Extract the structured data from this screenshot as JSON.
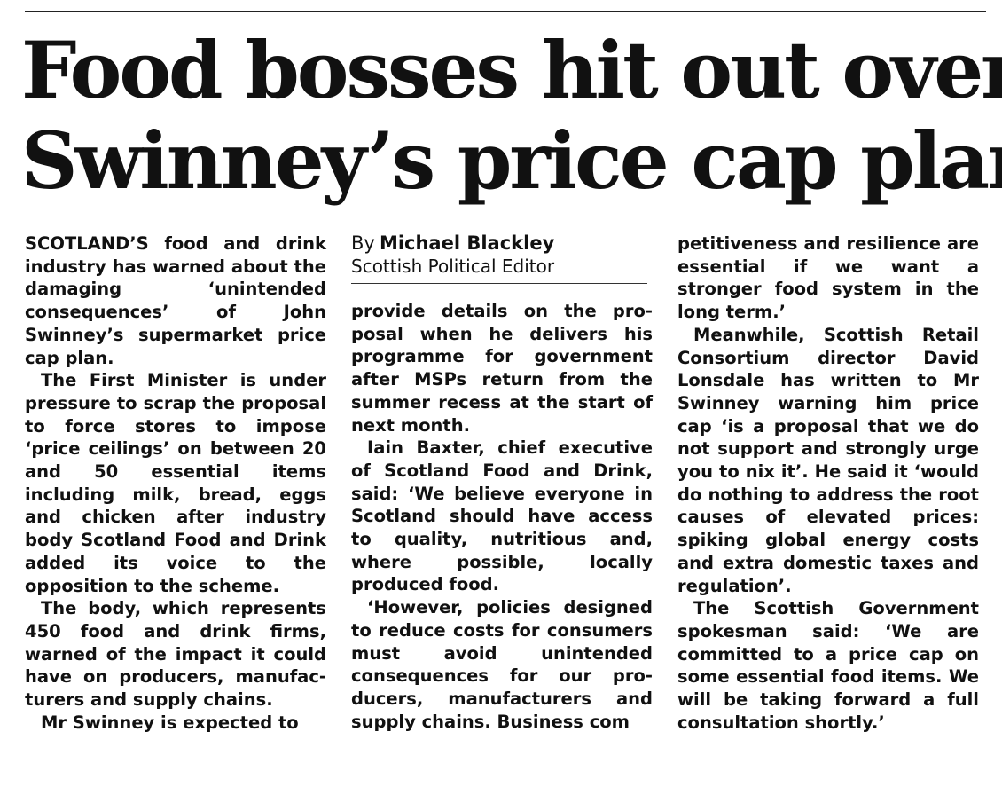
{
  "headline": {
    "line1": "Food bosses hit out over",
    "line2": "Swinney’s price cap plan"
  },
  "byline": {
    "by": "By",
    "name": "Michael Blackley",
    "role": "Scottish Political Editor"
  },
  "col1": {
    "p1": "SCOTLAND’S food and drink industry has warned about the damaging ‘unintended consequences’ of John Swinney’s supermarket price cap plan.",
    "p2": "The First Minister is under pressure to scrap the pro­posal to force stores to impose ‘price ceilings’ on between 20 and 50 essential items including milk, bread, eggs and chicken after indus­try body Scotland Food and Drink added its voice to the opposition to the scheme.",
    "p3": "The body, which represents 450 food and drink firms, warned of the impact it could have on producers, manufac­turers and supply chains.",
    "p4": "Mr Swinney is expected to"
  },
  "col2": {
    "p1": "provide details on the pro­posal when he delivers his programme for government after MSPs return from the summer recess at the start of next month.",
    "p2": "Iain Baxter, chief executive of Scotland Food and Drink, said: ‘We believe everyone in Scotland should have access to quality, nutritious and, where possible, locally produced food.",
    "p3": "‘However, policies designed to reduce costs for consum­ers must avoid unintended consequences for our pro­ducers, manufacturers and supply chains. Business com­"
  },
  "col3": {
    "p1": "petitiveness and resilience are essential if we want a stronger food system in the long term.’",
    "p2": "Meanwhile, Scottish Retail Consortium director David Lonsdale has written to Mr Swinney warning him price cap ‘is a proposal that we do not support and strongly urge you to nix it’. He said it ‘would do nothing to address the root causes of elevated prices: spiking global energy costs and extra domestic taxes and regulation’.",
    "p3": "The Scottish Government spokesman said: ‘We are committed to a price cap on some essential food items. We will be taking forward a full consultation shortly.’"
  }
}
